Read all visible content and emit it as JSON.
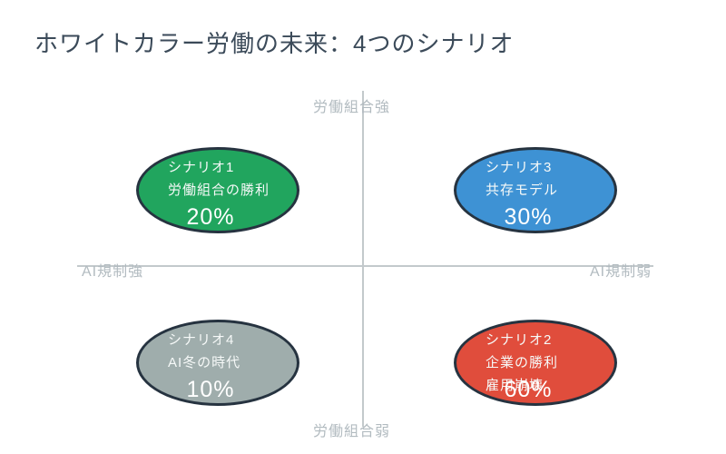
{
  "title": "ホワイトカラー労働の未来：4つのシナリオ",
  "axes": {
    "top_label": "労働組合強",
    "bottom_label": "労働組合弱",
    "left_label": "AI規制強",
    "right_label": "AI規制弱"
  },
  "scenarios": [
    {
      "quadrant": "top-left",
      "label": "シナリオ1",
      "line2": "労働組合の勝利",
      "probability": "20%",
      "color": "#21a55e"
    },
    {
      "quadrant": "top-right",
      "label": "シナリオ3",
      "line2": "共存モデル",
      "probability": "30%",
      "color": "#3e92d4"
    },
    {
      "quadrant": "bottom-left",
      "label": "シナリオ4",
      "line2": "AI冬の時代",
      "probability": "10%",
      "color": "#9fadac"
    },
    {
      "quadrant": "bottom-right",
      "label": "シナリオ2",
      "line2": "企業の勝利",
      "line3": "雇用崩壊",
      "probability": "60%",
      "color": "#e04d3c"
    }
  ],
  "colors": {
    "background": "#ffffff",
    "title_text": "#3b4a59",
    "axis_line": "#c3c9cc",
    "axis_label_text": "#b2bbc0",
    "bubble_border": "#263340",
    "bubble_text": "#ffffff"
  }
}
